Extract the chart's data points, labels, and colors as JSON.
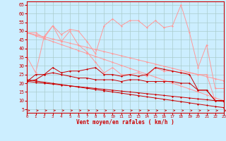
{
  "x": [
    0,
    1,
    2,
    3,
    4,
    5,
    6,
    7,
    8,
    9,
    10,
    11,
    12,
    13,
    14,
    15,
    16,
    17,
    18,
    19,
    20,
    21,
    22,
    23
  ],
  "series": [
    {
      "name": "line1_light_wavy",
      "color": "#ff9999",
      "y": [
        49,
        49,
        46,
        53,
        48,
        51,
        50,
        44,
        37,
        53,
        57,
        53,
        56,
        56,
        52,
        56,
        52,
        53,
        65,
        49,
        29,
        42,
        17,
        17
      ]
    },
    {
      "name": "line2_light_wavy",
      "color": "#ff9999",
      "y": [
        35,
        26,
        47,
        53,
        44,
        50,
        42,
        38,
        32,
        26,
        29,
        25,
        25,
        26,
        24,
        29,
        27,
        27,
        26,
        26,
        25,
        25,
        10,
        10
      ]
    },
    {
      "name": "line3_diag1_light",
      "color": "#ff9999",
      "y": [
        49,
        47.8,
        46.6,
        45.4,
        44.2,
        43.0,
        41.8,
        40.6,
        39.4,
        38.2,
        37.0,
        35.8,
        34.6,
        33.4,
        32.2,
        31.0,
        29.8,
        28.6,
        27.4,
        26.2,
        25.0,
        23.8,
        22.6,
        21.4
      ]
    },
    {
      "name": "line4_diag2_light",
      "color": "#ff9999",
      "y": [
        49,
        47.3,
        45.6,
        43.9,
        42.2,
        40.5,
        38.8,
        37.1,
        35.4,
        33.7,
        32.0,
        30.3,
        28.6,
        26.9,
        25.2,
        23.5,
        21.8,
        20.1,
        18.4,
        16.7,
        15.0,
        13.3,
        11.6,
        10.0
      ]
    },
    {
      "name": "line1_dark_wavy",
      "color": "#cc0000",
      "y": [
        21,
        25,
        25,
        29,
        26,
        27,
        27,
        28,
        29,
        25,
        25,
        24,
        25,
        24,
        25,
        29,
        28,
        27,
        26,
        25,
        16,
        16,
        10,
        10
      ]
    },
    {
      "name": "line2_dark_wavy",
      "color": "#cc0000",
      "y": [
        21,
        22,
        25,
        26,
        25,
        24,
        23,
        23,
        22,
        22,
        22,
        21,
        22,
        22,
        21,
        21,
        21,
        21,
        20,
        20,
        16,
        16,
        10,
        10
      ]
    },
    {
      "name": "line3_diag1_dark",
      "color": "#cc0000",
      "y": [
        22,
        21.3,
        20.6,
        19.9,
        19.2,
        18.5,
        17.8,
        17.1,
        16.4,
        15.7,
        15.0,
        14.3,
        13.6,
        12.9,
        12.2,
        11.5,
        10.8,
        10.1,
        9.4,
        8.7,
        8.0,
        7.3,
        6.6,
        6.0
      ]
    },
    {
      "name": "line4_diag2_dark",
      "color": "#cc0000",
      "y": [
        21,
        20.5,
        20.0,
        19.5,
        19.0,
        18.5,
        18.0,
        17.5,
        17.0,
        16.5,
        16.0,
        15.5,
        15.0,
        14.5,
        14.0,
        13.5,
        13.0,
        12.5,
        12.0,
        11.5,
        11.0,
        10.5,
        10.0,
        9.5
      ]
    }
  ],
  "xlim": [
    0,
    23
  ],
  "ylim": [
    3,
    67
  ],
  "yticks": [
    5,
    10,
    15,
    20,
    25,
    30,
    35,
    40,
    45,
    50,
    55,
    60,
    65
  ],
  "xticks": [
    0,
    1,
    2,
    3,
    4,
    5,
    6,
    7,
    8,
    9,
    10,
    11,
    12,
    13,
    14,
    15,
    16,
    17,
    18,
    19,
    20,
    21,
    22,
    23
  ],
  "xlabel": "Vent moyen/en rafales ( km/h )",
  "background_color": "#cceeff",
  "grid_color": "#aacccc",
  "axis_color": "#cc0000",
  "label_color": "#cc0000",
  "tick_color": "#cc0000"
}
